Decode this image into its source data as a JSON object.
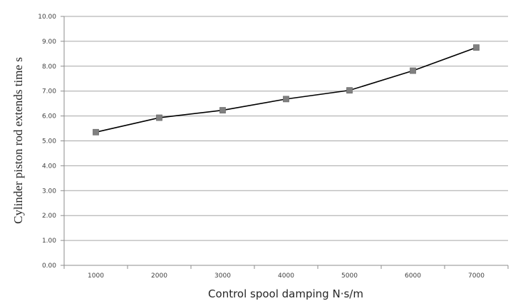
{
  "chart_data": {
    "type": "line",
    "title": "",
    "xlabel": "Control spool damping N·s/m",
    "ylabel": "Cylinder piston rod extends time s",
    "categories": [
      "1000",
      "2000",
      "3000",
      "4000",
      "5000",
      "6000",
      "7000"
    ],
    "series": [
      {
        "values": [
          5.35,
          5.93,
          6.23,
          6.68,
          7.03,
          7.82,
          8.75
        ],
        "color": "#000000",
        "marker": "square",
        "marker_color": "#808080"
      }
    ],
    "ylim": [
      0,
      10
    ],
    "ytick_labels": [
      "0.00",
      "1.00",
      "2.00",
      "3.00",
      "4.00",
      "5.00",
      "6.00",
      "7.00",
      "8.00",
      "9.00",
      "10.00"
    ],
    "grid": "horizontal",
    "legend": "none"
  }
}
